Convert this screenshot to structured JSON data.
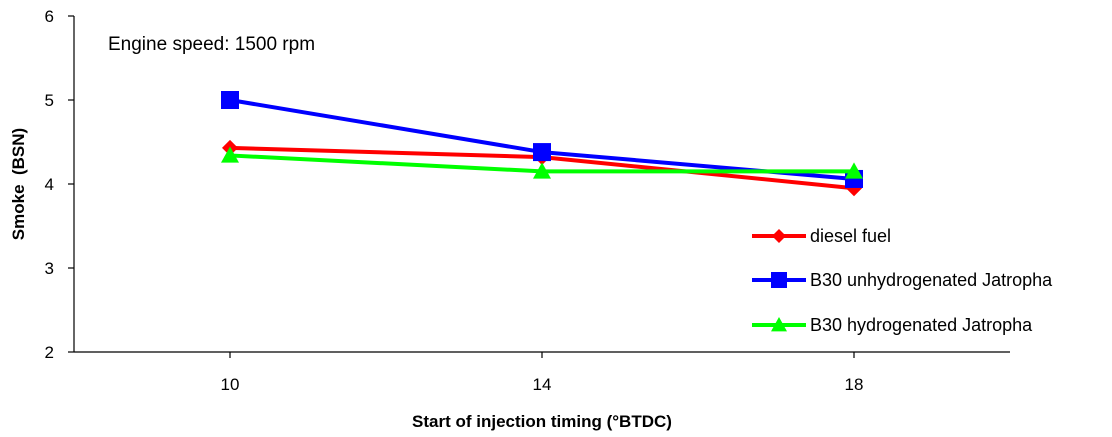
{
  "chart_data": {
    "type": "line",
    "annotation": "Engine speed: 1500 rpm",
    "xlabel": "Start of injection timing (°BTDC)",
    "ylabel": "Smoke  (BSN)",
    "x": [
      10,
      14,
      18
    ],
    "x_tick_labels": [
      "10",
      "14",
      "18"
    ],
    "y_tick_labels": [
      "2",
      "3",
      "4",
      "5",
      "6"
    ],
    "ylim": [
      2,
      6
    ],
    "xlim": [
      8,
      20
    ],
    "grid": false,
    "legend_position": "right",
    "series": [
      {
        "name": "diesel fuel",
        "values": [
          4.43,
          4.32,
          3.95
        ],
        "color": "#ff0000",
        "marker": "diamond"
      },
      {
        "name": "B30 unhydrogenated Jatropha",
        "values": [
          5.0,
          4.38,
          4.06
        ],
        "color": "#0000ff",
        "marker": "square"
      },
      {
        "name": "B30 hydrogenated Jatropha",
        "values": [
          4.34,
          4.15,
          4.15
        ],
        "color": "#00ff00",
        "marker": "triangle"
      }
    ]
  }
}
